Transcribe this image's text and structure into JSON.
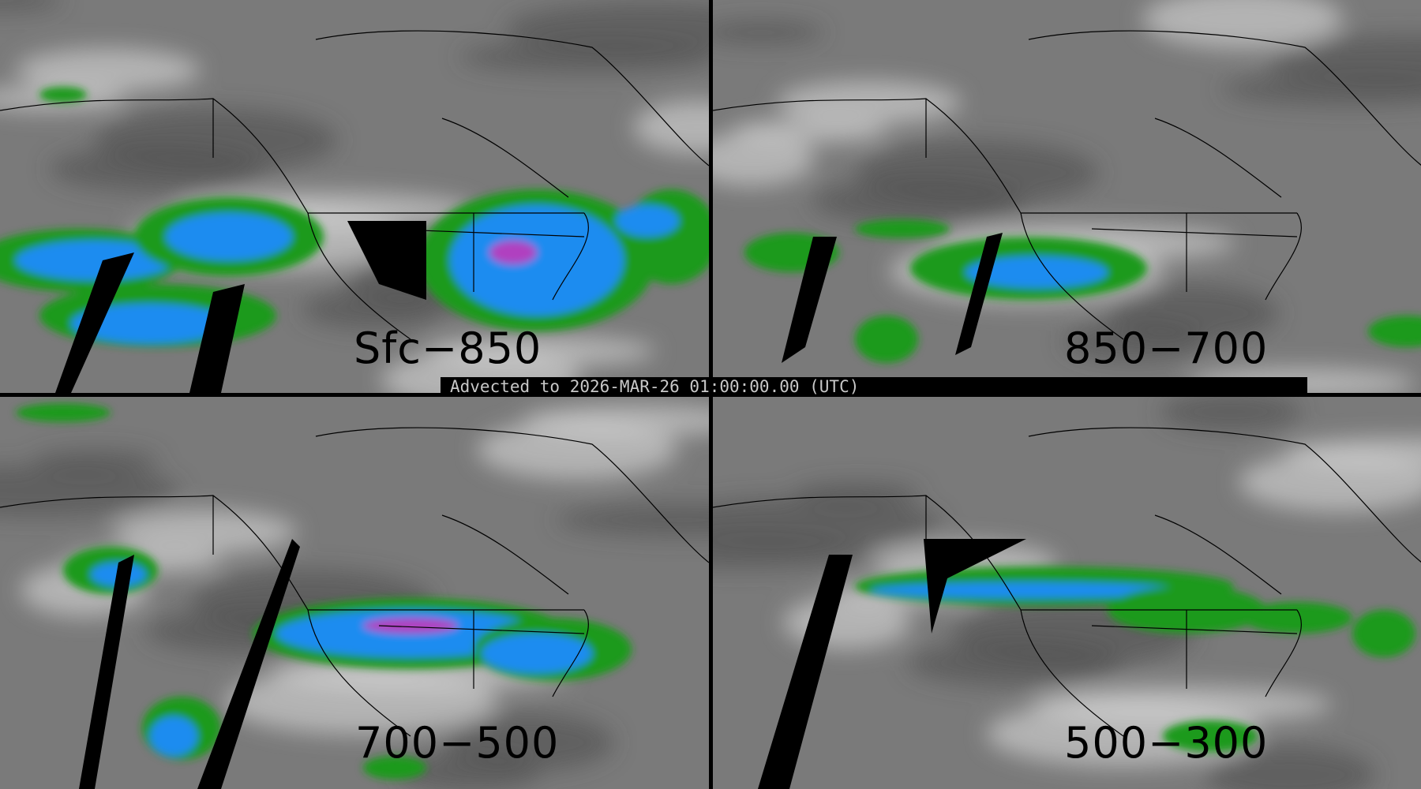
{
  "panels": [
    {
      "label": "Sfc−850"
    },
    {
      "label": "850−700"
    },
    {
      "label": "700−500"
    },
    {
      "label": "500−300"
    }
  ],
  "banner": "Advected to 2026-MAR-26 01:00:00.00 (UTC)",
  "colors": {
    "background_gray": "#7a7a7a",
    "light_gray": "#d8d8d8",
    "green": "#1a9a1a",
    "blue": "#1e8cf0",
    "magenta": "#b040c0",
    "coastline": "#000000",
    "missing": "#000000"
  }
}
